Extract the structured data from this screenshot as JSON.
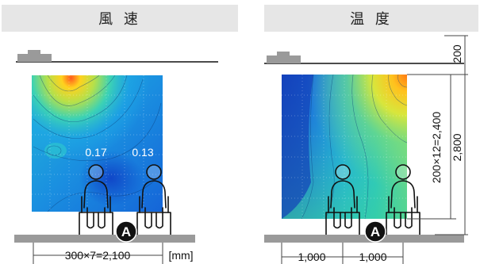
{
  "headers": {
    "left": "風 速",
    "right": "温 度"
  },
  "left_panel": {
    "value_1": "0.17",
    "value_2": "0.13",
    "marker": "A",
    "width_dim": "300×7=2,100",
    "unit": "[mm]"
  },
  "right_panel": {
    "marker": "A",
    "dim_top": "200",
    "dim_grid": "200×12=2,400",
    "dim_total": "2,800",
    "dim_bottom_1": "1,000",
    "dim_bottom_2": "1,000"
  },
  "colors": {
    "header_bg": "#e6e6e6",
    "floor": "#9a9a9a",
    "marker_bg": "#111111",
    "dim_line": "#444444"
  }
}
